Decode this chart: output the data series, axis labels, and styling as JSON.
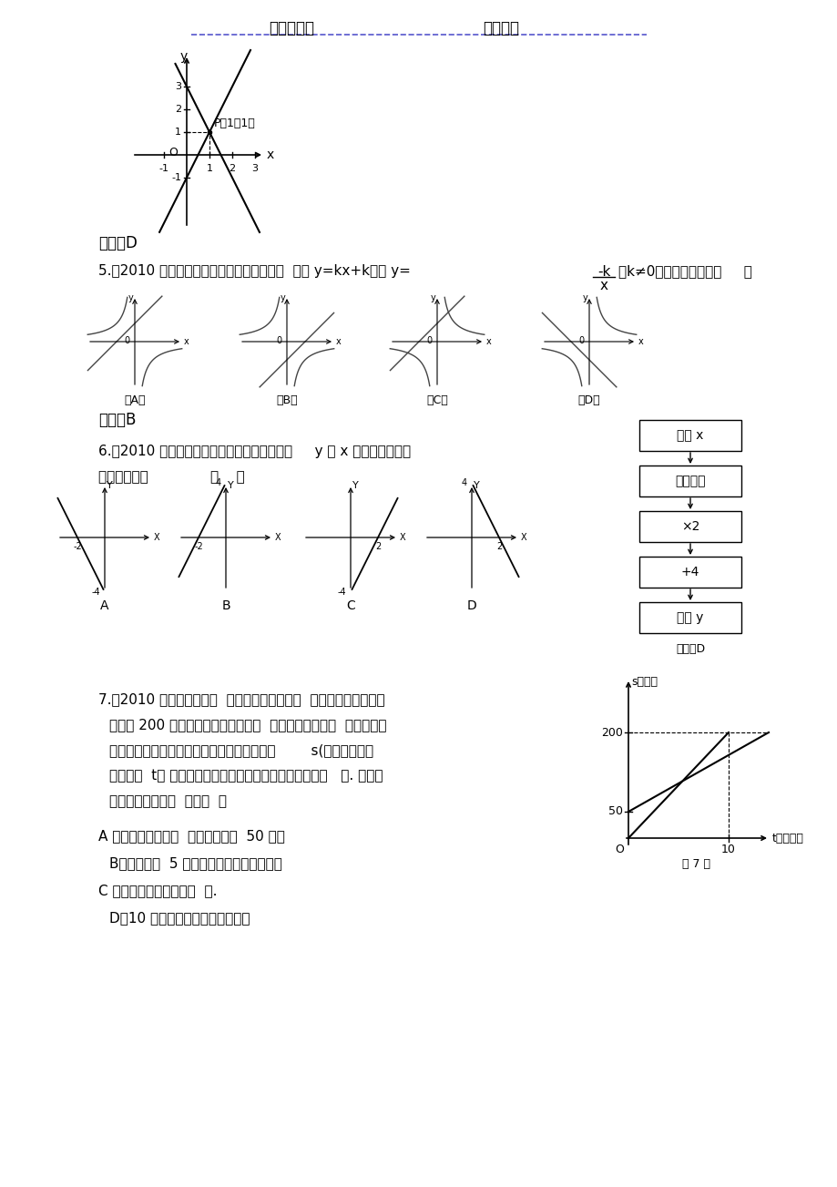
{
  "bg_color": "#ffffff",
  "header_left": "学习好资料",
  "header_right": "欢迎下载",
  "answer4": "答案：D",
  "answer5": "答案：B",
  "answer6": "答案：D",
  "q5_line": "5.（2010 天水模拟）在同一直角坐标系中，  函数 y=kx+k，与 y=",
  "q5_after": "（k≠0）的图像大致为（     ）",
  "q5_frac_n": "-k",
  "q5_frac_d": "x",
  "q6_line1": "6.（2010 河南模拟）如图所示的计算程序中，     y 与 x 的函数关系所对",
  "q6_line2": "应的图像应为              （    ）",
  "flow_boxes": [
    "输入 x",
    "取相反数",
    "×2",
    "+4",
    "输出 y"
  ],
  "q7_line1": "7.（2010 湖南模拟）一天  ，小军和爸爸去登山  ，已知山脚到山顶的",
  "q7_line2": "路程为 200 米，小军先走了一段路程  ，爸爸才开始出发  ，图中两条",
  "q7_line3": "线段分别表示小军和爸爸离开山脚登山的路程        s(米）与登山所",
  "q7_line4": "用的时间  t（ 分钟）的函数关系（从爸爸开始登山时计时   ）. 根据图",
  "q7_line5": "象，下列说法错误  的是（  ）",
  "q7_A": "A 、爸爸开始登山时  ，小军已走了  50 米；",
  "q7_B": "B、爸爸走了  5 分钟，小军仍在爸爸的前面",
  "q7_C": "C 、小军比爸爸晚到山顶  ；.",
  "q7_D": "D、10 分钟后小军还在爸爸的前面"
}
